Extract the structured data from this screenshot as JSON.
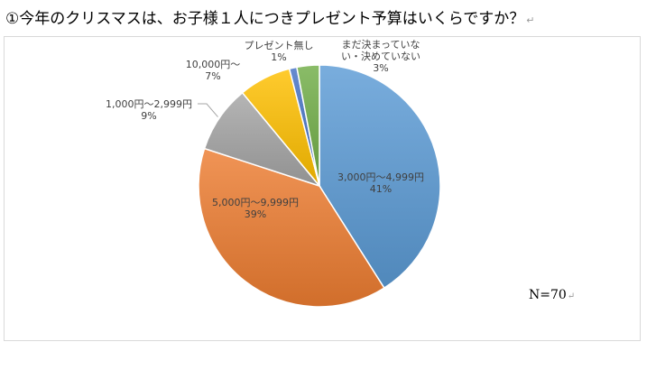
{
  "title": "①今年のクリスマスは、お子様１人につきプレゼント予算はいくらですか？",
  "sample_note": "N=70",
  "return_mark": "↵",
  "chart_data": {
    "type": "pie",
    "title": "",
    "categories": [
      "3,000円～4,999円",
      "5,000円～9,999円",
      "1,000円～2,999円",
      "10,000円～",
      "プレゼント無し",
      "まだ決まっていない・決めていない"
    ],
    "label_lines": [
      [
        "3,000円～4,999円"
      ],
      [
        "5,000円～9,999円"
      ],
      [
        "1,000円～2,999円"
      ],
      [
        "10,000円～"
      ],
      [
        "プレゼント無し"
      ],
      [
        "まだ決まっていな",
        "い・決めていない"
      ]
    ],
    "values": [
      41,
      39,
      9,
      7,
      1,
      3
    ],
    "value_labels": [
      "41%",
      "39%",
      "9%",
      "7%",
      "1%",
      "3%"
    ],
    "colors": [
      "#5b9bd5",
      "#ed7d31",
      "#a5a5a5",
      "#ffc000",
      "#4472c4",
      "#70ad47"
    ],
    "legend": "none"
  }
}
